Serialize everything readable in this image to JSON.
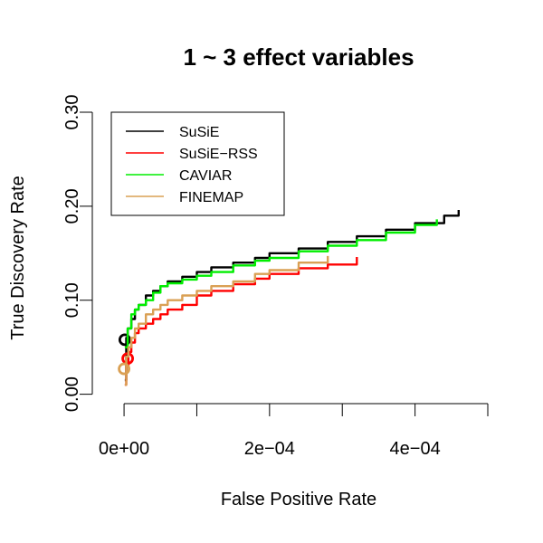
{
  "chart_data": {
    "type": "line",
    "title": "1 ~ 3 effect variables",
    "xlabel": "False Positive Rate",
    "ylabel": "True Discovery Rate",
    "xlim": [
      -2e-05,
      0.0005
    ],
    "ylim": [
      -0.01,
      0.3
    ],
    "x_ticks": [
      0,
      0.0002,
      0.0004
    ],
    "x_tick_labels": [
      "0e+00",
      "2e−04",
      "4e−04"
    ],
    "x_ticks_unlabeled": [
      0.0001,
      0.0003,
      0.0005
    ],
    "y_ticks": [
      0.0,
      0.1,
      0.2,
      0.3
    ],
    "y_tick_labels": [
      "0.00",
      "0.10",
      "0.20",
      "0.30"
    ],
    "legend_position": "top-left",
    "grid": false,
    "series": [
      {
        "name": "SuSiE",
        "color": "#000000",
        "marker": {
          "x": 1e-06,
          "y": 0.058
        },
        "x": [
          1e-06,
          3e-06,
          5e-06,
          1e-05,
          1.5e-05,
          2e-05,
          3e-05,
          4e-05,
          5e-05,
          6e-05,
          8e-05,
          0.0001,
          0.00012,
          0.00015,
          0.00018,
          0.0002,
          0.00024,
          0.00028,
          0.00032,
          0.00036,
          0.0004,
          0.00044,
          0.00046
        ],
        "y": [
          0.015,
          0.06,
          0.07,
          0.08,
          0.09,
          0.095,
          0.105,
          0.11,
          0.115,
          0.12,
          0.125,
          0.13,
          0.135,
          0.14,
          0.145,
          0.15,
          0.155,
          0.162,
          0.168,
          0.175,
          0.182,
          0.19,
          0.196
        ]
      },
      {
        "name": "SuSiE−RSS",
        "color": "#ff0000",
        "marker": {
          "x": 5e-06,
          "y": 0.038
        },
        "x": [
          1e-06,
          3e-06,
          6e-06,
          1e-05,
          1.5e-05,
          2e-05,
          3e-05,
          4e-05,
          5e-05,
          6e-05,
          8e-05,
          0.0001,
          0.00012,
          0.00015,
          0.00018,
          0.0002,
          0.00024,
          0.00028,
          0.00032
        ],
        "y": [
          0.01,
          0.03,
          0.045,
          0.055,
          0.065,
          0.07,
          0.075,
          0.08,
          0.085,
          0.09,
          0.095,
          0.105,
          0.11,
          0.117,
          0.123,
          0.128,
          0.134,
          0.138,
          0.146
        ]
      },
      {
        "name": "CAVIAR",
        "color": "#00ee00",
        "marker": null,
        "x": [
          1e-06,
          5e-06,
          1e-05,
          1.5e-05,
          2e-05,
          3e-05,
          4e-05,
          5e-05,
          6e-05,
          8e-05,
          0.0001,
          0.00012,
          0.00015,
          0.00018,
          0.0002,
          0.00024,
          0.00028,
          0.00032,
          0.00036,
          0.0004,
          0.00043
        ],
        "y": [
          0.05,
          0.07,
          0.085,
          0.09,
          0.095,
          0.1,
          0.108,
          0.115,
          0.118,
          0.122,
          0.126,
          0.13,
          0.137,
          0.142,
          0.145,
          0.152,
          0.158,
          0.164,
          0.172,
          0.18,
          0.186
        ]
      },
      {
        "name": "FINEMAP",
        "color": "#daa054",
        "marker": {
          "x": 0.0,
          "y": 0.027
        },
        "x": [
          1e-06,
          3e-06,
          6e-06,
          1e-05,
          1.5e-05,
          2e-05,
          3e-05,
          4e-05,
          5e-05,
          6e-05,
          8e-05,
          0.0001,
          0.00012,
          0.00015,
          0.00018,
          0.0002,
          0.00024,
          0.00028
        ],
        "y": [
          0.01,
          0.04,
          0.05,
          0.06,
          0.07,
          0.075,
          0.085,
          0.09,
          0.095,
          0.1,
          0.105,
          0.11,
          0.115,
          0.12,
          0.128,
          0.132,
          0.14,
          0.147
        ]
      }
    ]
  }
}
